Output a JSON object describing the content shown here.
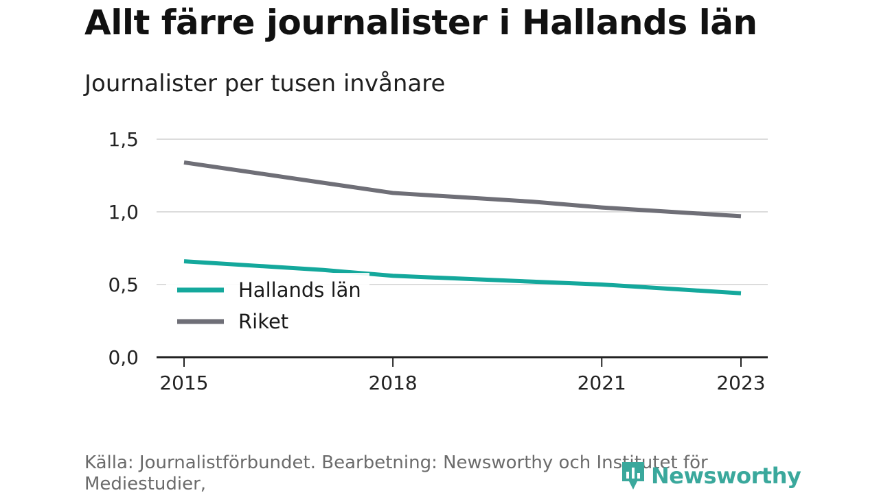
{
  "header": {
    "title": "Allt färre journalister i Hallands län",
    "subtitle": "Journalister per tusen invånare"
  },
  "footer": {
    "source": "Källa: Journalistförbundet. Bearbetning: Newsworthy och Institutet för Mediestudier,",
    "logo_text": "Newsworthy",
    "logo_color": "#3aa89c"
  },
  "chart_data": {
    "type": "line",
    "x": [
      2015,
      2016,
      2017,
      2018,
      2019,
      2020,
      2021,
      2022,
      2023
    ],
    "series": [
      {
        "name": "Hallands län",
        "color": "#14a89c",
        "values": [
          0.66,
          0.63,
          0.6,
          0.56,
          0.54,
          0.52,
          0.5,
          0.47,
          0.44
        ]
      },
      {
        "name": "Riket",
        "color": "#6f6f77",
        "values": [
          1.34,
          1.27,
          1.2,
          1.13,
          1.1,
          1.07,
          1.03,
          1.0,
          0.97
        ]
      }
    ],
    "x_ticks": [
      2015,
      2018,
      2021,
      2023
    ],
    "x_tick_labels": [
      "2015",
      "2018",
      "2021",
      "2023"
    ],
    "y_ticks": [
      0,
      0.5,
      1.0,
      1.5
    ],
    "y_tick_labels": [
      "0,0",
      "0,5",
      "1,0",
      "1,5"
    ],
    "ylim": [
      0,
      1.5
    ],
    "xlim": [
      2015,
      2023
    ],
    "grid": true,
    "legend": "bottom-left",
    "xlabel": "",
    "ylabel": ""
  }
}
